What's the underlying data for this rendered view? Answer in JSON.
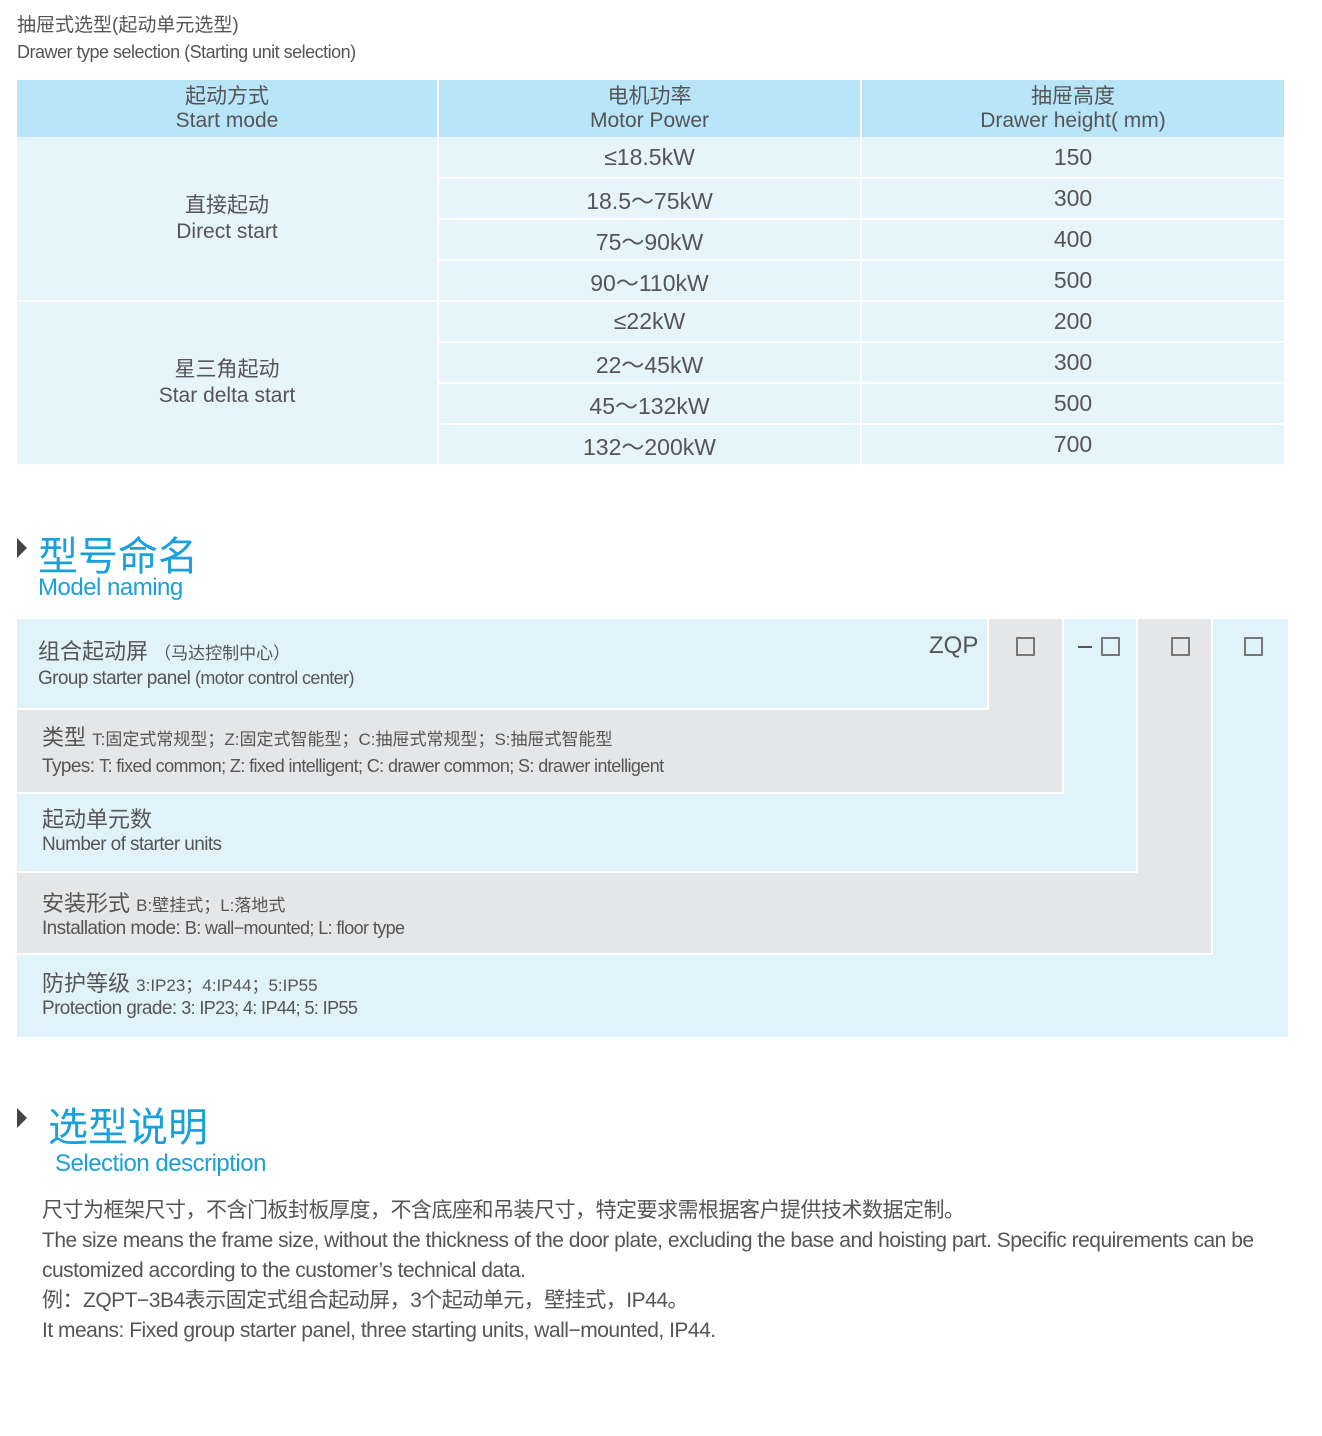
{
  "header": {
    "title_cn": "抽屉式选型(起动单元选型)",
    "title_en": "Drawer type selection (Starting unit selection)"
  },
  "table": {
    "columns": [
      {
        "cn": "起动方式",
        "en": "Start mode"
      },
      {
        "cn": "电机功率",
        "en": "Motor Power"
      },
      {
        "cn": "抽屉高度",
        "en": "Drawer height( mm)"
      }
    ],
    "groups": [
      {
        "cn": "直接起动",
        "en": "Direct start",
        "rows": [
          {
            "power": "≤18.5kW",
            "height": "150"
          },
          {
            "power": "18.5～75kW",
            "height": "300"
          },
          {
            "power": "75～90kW",
            "height": "400"
          },
          {
            "power": "90～110kW",
            "height": "500"
          }
        ]
      },
      {
        "cn": "星三角起动",
        "en": "Star delta start",
        "rows": [
          {
            "power": "≤22kW",
            "height": "200"
          },
          {
            "power": "22～45kW",
            "height": "300"
          },
          {
            "power": "45～132kW",
            "height": "500"
          },
          {
            "power": "132～200kW",
            "height": "700"
          }
        ]
      }
    ]
  },
  "model": {
    "title_cn": "型号命名",
    "title_en": "Model naming",
    "prefix": "ZQP",
    "dash": "−",
    "rows": [
      {
        "cn": "组合起动屏",
        "cn_note": "（马达控制中心）",
        "en": "Group starter panel",
        "en_note": "(motor control center)"
      },
      {
        "cn": "类型",
        "cn_note": "T:固定式常规型；Z:固定式智能型；C:抽屉式常规型；S:抽屉式智能型",
        "en": "Types:",
        "en_note": "T: fixed common; Z: fixed intelligent; C: drawer common; S: drawer intelligent"
      },
      {
        "cn": "起动单元数",
        "cn_note": "",
        "en": "Number  of  starter units",
        "en_note": ""
      },
      {
        "cn": "安装形式",
        "cn_note": "B:壁挂式；L:落地式",
        "en": "Installation mode:",
        "en_note": "B: wall−mounted; L: floor type"
      },
      {
        "cn": "防护等级",
        "cn_note": "3:IP23；4:IP44；5:IP55",
        "en": "Protection grade:",
        "en_note": "3: IP23; 4: IP44; 5: IP55"
      }
    ]
  },
  "selection": {
    "title_cn": "选型说明",
    "title_en": "Selection description",
    "lines": [
      "尺寸为框架尺寸，不含门板封板厚度，不含底座和吊装尺寸，特定要求需根据客户提供技术数据定制。",
      "The size means the frame size, without the thickness of the door plate, excluding the base and hoisting part. Specific requirements can be",
      "customized according to the customer’s technical data.",
      "例：ZQPT−3B4表示固定式组合起动屏，3个起动单元，壁挂式，IP44。",
      "It means: Fixed group starter panel, three starting units, wall−mounted, IP44."
    ]
  },
  "colors": {
    "accent": "#1aa0dc",
    "header_bg": "#b9e5f8",
    "body_bg": "#e6f5fc",
    "panel_blue": "#e0f3fb",
    "panel_gray": "#e5e6e8"
  }
}
